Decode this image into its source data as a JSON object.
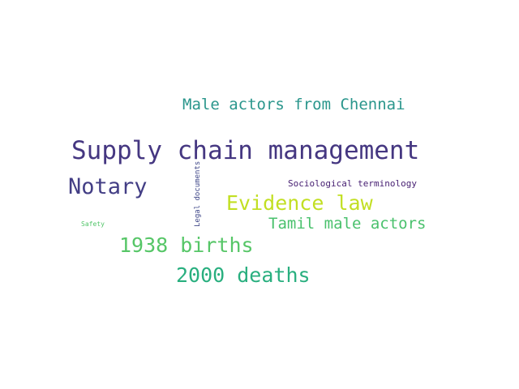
{
  "words": [
    {
      "text": "Supply chain management",
      "color": "#453781"
    },
    {
      "text": "Male actors from Chennai",
      "color": "#2a968c"
    },
    {
      "text": "Notary",
      "color": "#433e85"
    },
    {
      "text": "Evidence law",
      "color": "#c2df23"
    },
    {
      "text": "Tamil male actors",
      "color": "#4ac16d"
    },
    {
      "text": "1938 births",
      "color": "#56c667"
    },
    {
      "text": "2000 deaths",
      "color": "#29af7f"
    },
    {
      "text": "Sociological terminology",
      "color": "#482173"
    },
    {
      "text": "Safety",
      "color": "#52c569"
    },
    {
      "text": "Legal documents",
      "color": "#3f4788"
    }
  ]
}
